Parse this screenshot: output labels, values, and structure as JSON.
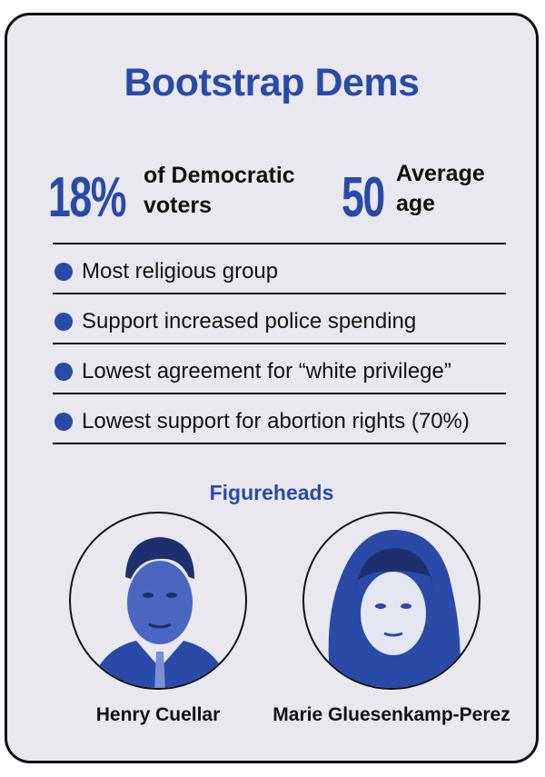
{
  "title": "Bootstrap Dems",
  "stats": [
    {
      "value": "18%",
      "label_line1": "of Democratic",
      "label_line2": "voters"
    },
    {
      "value": "50",
      "label_line1": "Average",
      "label_line2": "age"
    }
  ],
  "bullets": [
    "Most religious group",
    "Support increased police spending",
    "Lowest agreement for “white privilege”",
    "Lowest support for abortion rights (70%)"
  ],
  "figureheads_heading": "Figureheads",
  "figureheads": [
    {
      "name": "Henry Cuellar"
    },
    {
      "name": "Marie Gluesenkamp-Perez"
    }
  ],
  "colors": {
    "accent": "#2a4aa8",
    "background": "#e9e8ef",
    "text": "#111111"
  }
}
